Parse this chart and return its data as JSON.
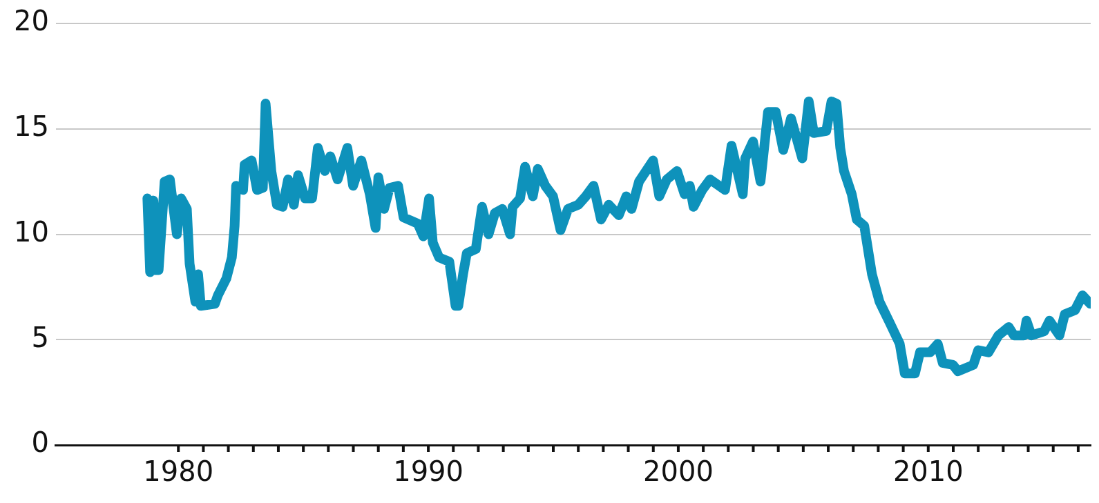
{
  "chart_data": {
    "type": "line",
    "grid": "y",
    "marker": "none",
    "line_style": "solid",
    "xlim": [
      1975.1,
      2016.5
    ],
    "xticks": [
      1980,
      {
        "value": 1981,
        "label": null
      },
      {
        "value": 1982,
        "label": null
      },
      {
        "value": 1983,
        "label": null
      },
      {
        "value": 1984,
        "label": null
      },
      {
        "value": 1985,
        "label": null
      },
      {
        "value": 1986,
        "label": null
      },
      {
        "value": 1987,
        "label": null
      },
      {
        "value": 1988,
        "label": null
      },
      {
        "value": 1989,
        "label": null
      },
      1990,
      {
        "value": 1991,
        "label": null
      },
      {
        "value": 1992,
        "label": null
      },
      {
        "value": 1993,
        "label": null
      },
      {
        "value": 1994,
        "label": null
      },
      {
        "value": 1995,
        "label": null
      },
      {
        "value": 1996,
        "label": null
      },
      {
        "value": 1997,
        "label": null
      },
      {
        "value": 1998,
        "label": null
      },
      {
        "value": 1999,
        "label": null
      },
      2000,
      {
        "value": 2001,
        "label": null
      },
      {
        "value": 2002,
        "label": null
      },
      {
        "value": 2003,
        "label": null
      },
      {
        "value": 2004,
        "label": null
      },
      {
        "value": 2005,
        "label": null
      },
      {
        "value": 2006,
        "label": null
      },
      {
        "value": 2007,
        "label": null
      },
      {
        "value": 2008,
        "label": null
      },
      {
        "value": 2009,
        "label": null
      },
      2010,
      {
        "value": 2011,
        "label": null
      },
      {
        "value": 2012,
        "label": null
      },
      {
        "value": 2013,
        "label": null
      },
      {
        "value": 2014,
        "label": null
      },
      {
        "value": 2015,
        "label": null
      },
      {
        "value": 2016,
        "label": null
      }
    ],
    "ylim": [
      0,
      20
    ],
    "yticks": [
      0,
      5,
      10,
      15,
      20
    ],
    "series": [
      {
        "color": "#0e92bb",
        "x": [
          1978.76,
          1978.87,
          1979.0,
          1979.1,
          1979.21,
          1979.45,
          1979.66,
          1979.94,
          1980.11,
          1980.34,
          1980.45,
          1980.68,
          1980.79,
          1980.9,
          1981.46,
          1981.58,
          1981.92,
          1982.14,
          1982.25,
          1982.31,
          1982.59,
          1982.65,
          1982.93,
          1983.15,
          1983.38,
          1983.49,
          1983.72,
          1983.94,
          1984.17,
          1984.39,
          1984.62,
          1984.79,
          1985.07,
          1985.35,
          1985.58,
          1985.86,
          1986.08,
          1986.37,
          1986.76,
          1986.99,
          1987.32,
          1987.66,
          1987.89,
          1988.0,
          1988.23,
          1988.45,
          1988.79,
          1989.01,
          1989.58,
          1989.8,
          1990.03,
          1990.18,
          1990.43,
          1990.84,
          1991.09,
          1991.2,
          1991.39,
          1991.54,
          1991.9,
          1992.15,
          1992.41,
          1992.66,
          1992.96,
          1993.27,
          1993.37,
          1993.67,
          1993.87,
          1994.18,
          1994.38,
          1994.68,
          1994.99,
          1995.29,
          1995.59,
          1996.0,
          1996.3,
          1996.61,
          1996.91,
          1997.22,
          1997.62,
          1997.92,
          1998.13,
          1998.43,
          1998.99,
          1999.24,
          1999.54,
          1999.95,
          2000.25,
          2000.46,
          2000.61,
          2000.96,
          2001.27,
          2001.87,
          2002.13,
          2002.58,
          2002.68,
          2002.99,
          2003.29,
          2003.59,
          2003.9,
          2004.2,
          2004.51,
          2004.96,
          2005.22,
          2005.42,
          2005.92,
          2006.13,
          2006.33,
          2006.48,
          2006.63,
          2006.94,
          2007.14,
          2007.44,
          2007.75,
          2008.05,
          2008.46,
          2008.86,
          2009.06,
          2009.47,
          2009.67,
          2010.08,
          2010.38,
          2010.58,
          2010.99,
          2011.19,
          2011.8,
          2012.0,
          2012.41,
          2012.81,
          2013.22,
          2013.43,
          2013.83,
          2013.93,
          2014.13,
          2014.64,
          2014.85,
          2015.25,
          2015.46,
          2015.87,
          2016.17,
          2016.48
        ],
        "values": [
          11.7,
          8.2,
          11.6,
          8.3,
          8.3,
          12.5,
          12.6,
          10.0,
          11.7,
          11.2,
          8.6,
          6.8,
          8.1,
          6.6,
          6.7,
          7.1,
          7.9,
          8.9,
          10.4,
          12.3,
          12.1,
          13.3,
          13.5,
          12.1,
          12.2,
          16.2,
          13.0,
          11.4,
          11.3,
          12.6,
          11.4,
          12.8,
          11.7,
          11.7,
          14.1,
          13.0,
          13.7,
          12.6,
          14.1,
          12.3,
          13.5,
          11.9,
          10.3,
          12.7,
          11.2,
          12.2,
          12.3,
          10.8,
          10.5,
          9.9,
          11.7,
          9.6,
          8.9,
          8.7,
          6.6,
          6.6,
          8.1,
          9.1,
          9.3,
          11.3,
          10.0,
          11.0,
          11.2,
          10.0,
          11.3,
          11.7,
          13.2,
          11.8,
          13.1,
          12.3,
          11.8,
          10.2,
          11.2,
          11.4,
          11.8,
          12.3,
          10.7,
          11.4,
          10.9,
          11.8,
          11.2,
          12.5,
          13.5,
          11.8,
          12.6,
          13.0,
          11.9,
          12.3,
          11.3,
          12.1,
          12.6,
          12.1,
          14.2,
          11.9,
          13.6,
          14.4,
          12.5,
          15.8,
          15.8,
          14.0,
          15.5,
          13.6,
          16.3,
          14.8,
          14.9,
          16.3,
          16.2,
          14.1,
          13.0,
          11.9,
          10.7,
          10.4,
          8.1,
          6.8,
          5.8,
          4.8,
          3.4,
          3.4,
          4.4,
          4.4,
          4.8,
          3.9,
          3.8,
          3.5,
          3.8,
          4.5,
          4.4,
          5.2,
          5.6,
          5.2,
          5.2,
          5.9,
          5.2,
          5.4,
          5.9,
          5.2,
          6.2,
          6.4,
          7.1,
          6.7
        ]
      }
    ]
  }
}
